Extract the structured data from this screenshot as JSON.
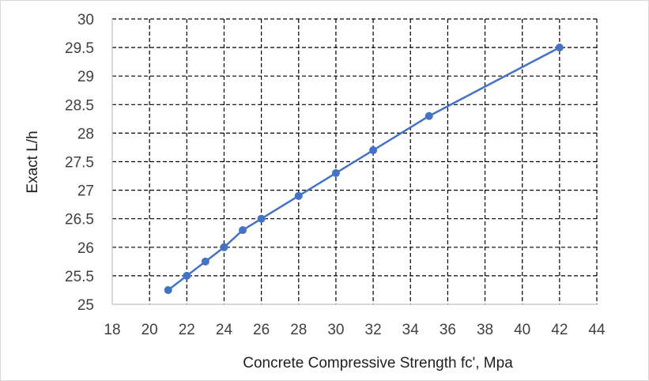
{
  "chart_data": {
    "type": "line",
    "title": "",
    "xlabel": "Concrete Compressive Strength fc', Mpa",
    "ylabel": "Exact L/h",
    "xlim": [
      18,
      44
    ],
    "ylim": [
      25,
      30
    ],
    "x_ticks": [
      "18",
      "20",
      "22",
      "24",
      "26",
      "28",
      "30",
      "32",
      "34",
      "36",
      "38",
      "40",
      "42",
      "44"
    ],
    "y_ticks": [
      "25",
      "25.5",
      "26",
      "26.5",
      "27",
      "27.5",
      "28",
      "28.5",
      "29",
      "29.5",
      "30"
    ],
    "grid": true,
    "legend": "none",
    "series": [
      {
        "color": "#4472c4",
        "markers": true,
        "x": [
          21,
          22,
          23,
          24,
          25,
          26,
          28,
          30,
          32,
          35,
          42
        ],
        "y": [
          25.25,
          25.5,
          25.75,
          26.0,
          26.3,
          26.5,
          26.9,
          27.3,
          27.7,
          28.3,
          29.5
        ]
      }
    ]
  }
}
